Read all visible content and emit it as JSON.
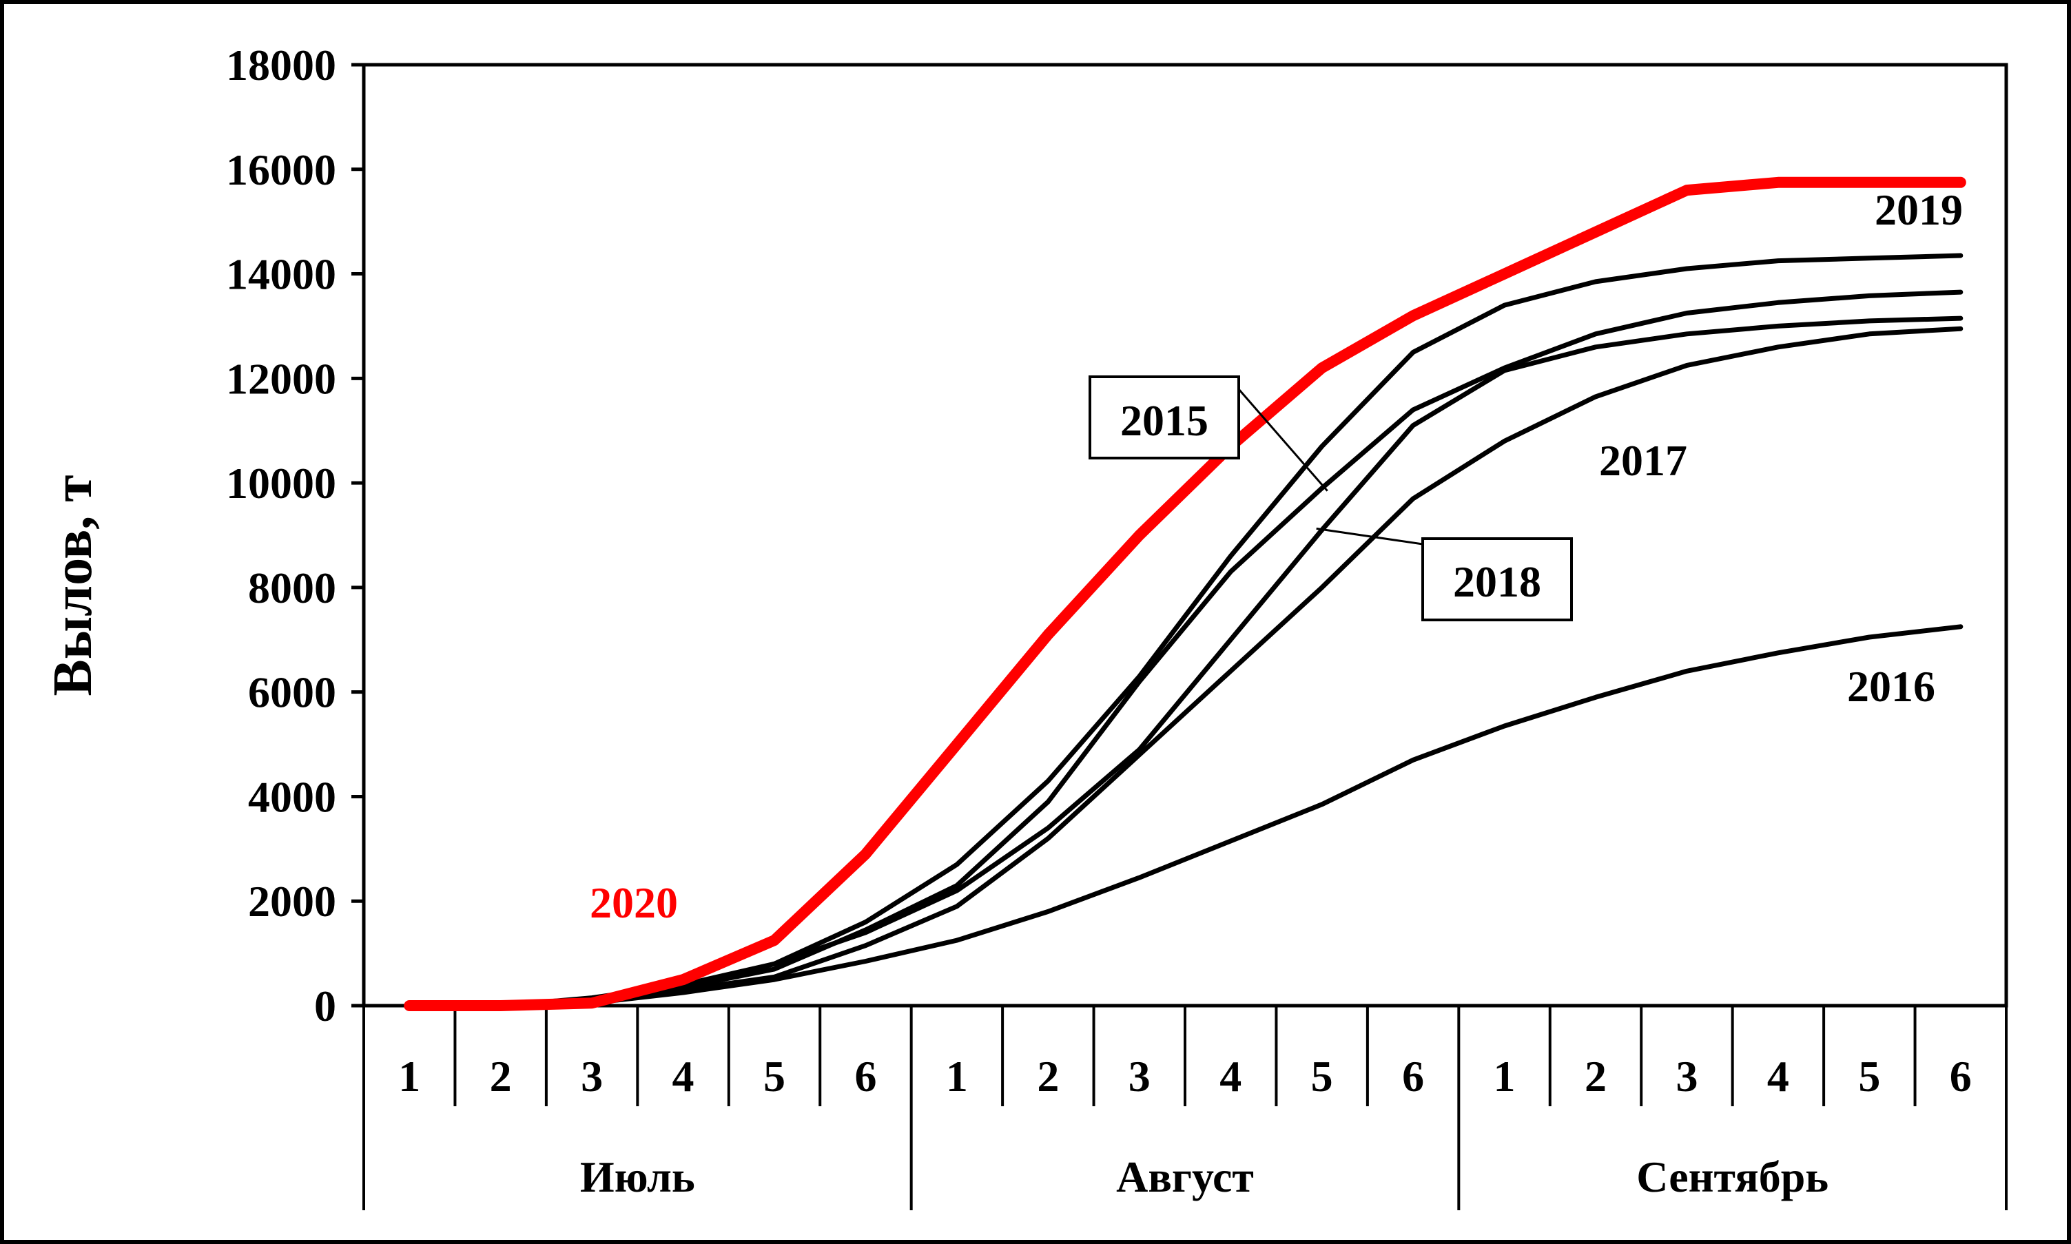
{
  "chart_data": {
    "type": "line",
    "ylabel": "Вылов, т",
    "xlabel": "",
    "ylim": [
      0,
      18000
    ],
    "yticks": [
      "0",
      "2000",
      "4000",
      "6000",
      "8000",
      "10000",
      "12000",
      "14000",
      "16000",
      "18000"
    ],
    "categories": [
      "1",
      "2",
      "3",
      "4",
      "5",
      "6",
      "1",
      "2",
      "3",
      "4",
      "5",
      "6",
      "1",
      "2",
      "3",
      "4",
      "5",
      "6"
    ],
    "months": [
      "Июль",
      "Август",
      "Сентябрь"
    ],
    "grid": false,
    "legend": "none",
    "series": [
      {
        "name": "2020",
        "color": "#ff0000",
        "highlight": true,
        "values": [
          0,
          0,
          50,
          500,
          1250,
          2900,
          5000,
          7100,
          9000,
          10700,
          12200,
          13200,
          14000,
          14800,
          15600,
          15750,
          15750,
          15750
        ]
      },
      {
        "name": "2019",
        "color": "#000000",
        "values": [
          0,
          0,
          50,
          300,
          800,
          1600,
          2700,
          4300,
          6300,
          8600,
          10700,
          12500,
          13400,
          13850,
          14100,
          14250,
          14300,
          14350
        ]
      },
      {
        "name": "2015",
        "color": "#000000",
        "values": [
          0,
          0,
          100,
          350,
          700,
          1450,
          2300,
          3900,
          6200,
          8300,
          9900,
          11400,
          12200,
          12850,
          13250,
          13450,
          13580,
          13650
        ]
      },
      {
        "name": "2018",
        "color": "#000000",
        "values": [
          0,
          0,
          150,
          400,
          800,
          1400,
          2200,
          3400,
          4900,
          7000,
          9100,
          11100,
          12150,
          12600,
          12850,
          13000,
          13100,
          13150
        ]
      },
      {
        "name": "2017",
        "color": "#000000",
        "values": [
          0,
          0,
          100,
          300,
          550,
          1150,
          1900,
          3200,
          4800,
          6400,
          8000,
          9700,
          10800,
          11650,
          12250,
          12600,
          12850,
          12950
        ]
      },
      {
        "name": "2016",
        "color": "#000000",
        "values": [
          0,
          0,
          50,
          250,
          500,
          850,
          1250,
          1800,
          2450,
          3150,
          3850,
          4700,
          5350,
          5900,
          6400,
          6750,
          7050,
          7250
        ]
      }
    ]
  }
}
